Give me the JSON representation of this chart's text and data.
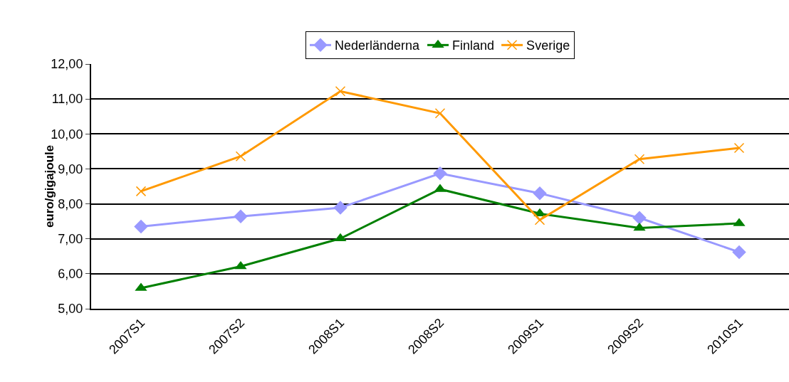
{
  "chart_data": {
    "type": "line",
    "ylabel": "euro/gigajoule",
    "categories": [
      "2007S1",
      "2007S2",
      "2008S1",
      "2008S2",
      "2009S1",
      "2009S2",
      "2010S1"
    ],
    "series": [
      {
        "name": "Nederländerna",
        "color": "#9999ff",
        "marker": "diamond",
        "values": [
          7.35,
          7.64,
          7.89,
          8.87,
          8.3,
          7.6,
          6.62
        ]
      },
      {
        "name": "Finland",
        "color": "#008000",
        "marker": "triangle",
        "values": [
          5.59,
          6.21,
          7.01,
          8.42,
          7.72,
          7.31,
          7.44
        ]
      },
      {
        "name": "Sverige",
        "color": "#ff9900",
        "marker": "cross",
        "values": [
          8.36,
          9.36,
          11.22,
          10.59,
          7.54,
          9.28,
          9.6
        ]
      }
    ],
    "ylim": [
      5,
      12
    ],
    "yticks": [
      {
        "value": 5,
        "label": "5,00"
      },
      {
        "value": 6,
        "label": "6,00"
      },
      {
        "value": 7,
        "label": "7,00"
      },
      {
        "value": 8,
        "label": "8,00"
      },
      {
        "value": 9,
        "label": "9,00"
      },
      {
        "value": 10,
        "label": "10,00"
      },
      {
        "value": 11,
        "label": "11,00"
      },
      {
        "value": 12,
        "label": "12,00"
      }
    ],
    "grid": "y",
    "legend": "top",
    "line_style": "solid"
  }
}
